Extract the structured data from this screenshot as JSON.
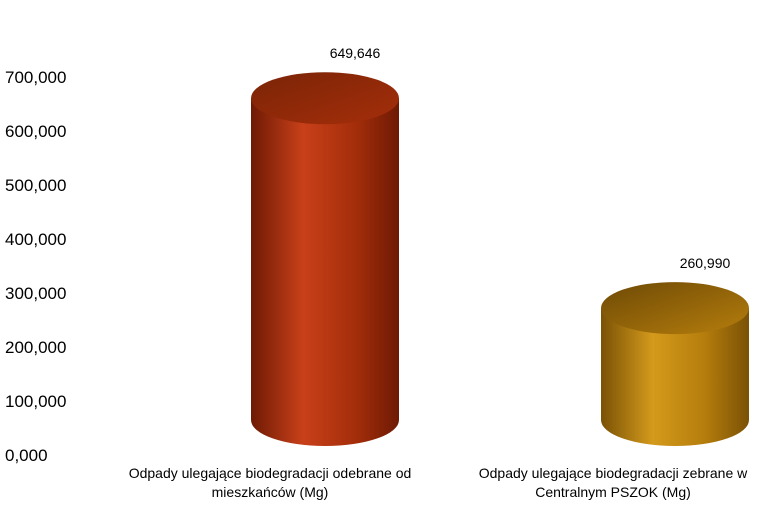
{
  "chart_data": {
    "type": "bar",
    "title": "",
    "xlabel": "",
    "ylabel": "",
    "categories": [
      [
        "Odpady ulegające biodegradacji odebrane od",
        "mieszkańców (Mg)"
      ],
      [
        "Odpady ulegające biodegradacji zebrane w",
        "Centralnym PSZOK (Mg)"
      ]
    ],
    "values": [
      649.646,
      260.99
    ],
    "value_labels": [
      "649,646",
      "260,990"
    ],
    "ylim": [
      0,
      700
    ],
    "yticks": [
      0,
      100,
      200,
      300,
      400,
      500,
      600,
      700
    ],
    "ytick_labels": [
      "0,000",
      "100,000",
      "200,000",
      "300,000",
      "400,000",
      "500,000",
      "600,000",
      "700,000"
    ],
    "grid": false,
    "legend": "none",
    "bar_shape": "cylinder",
    "colors": [
      {
        "main": "#a52e0a",
        "light": "#c8401a",
        "dark": "#6e1a04",
        "top": "#7a2407"
      },
      {
        "main": "#b57d0c",
        "light": "#d49a1c",
        "dark": "#7a5206",
        "top": "#6e4a06"
      }
    ]
  }
}
